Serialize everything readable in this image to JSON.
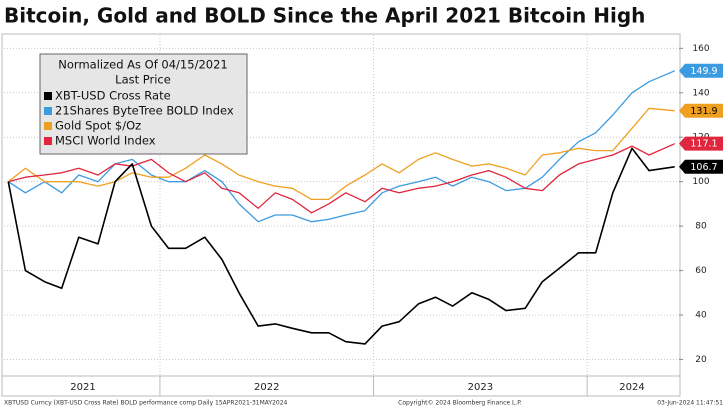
{
  "chart_data": {
    "type": "line",
    "title": "Bitcoin, Gold and BOLD Since the April 2021 Bitcoin High",
    "legend_title": "Normalized As Of 04/15/2021",
    "legend_subtitle": "Last Price",
    "x": [
      2021.29,
      2021.37,
      2021.46,
      2021.54,
      2021.62,
      2021.71,
      2021.79,
      2021.87,
      2021.96,
      2022.04,
      2022.12,
      2022.21,
      2022.29,
      2022.37,
      2022.46,
      2022.54,
      2022.62,
      2022.71,
      2022.79,
      2022.87,
      2022.96,
      2023.04,
      2023.12,
      2023.21,
      2023.29,
      2023.37,
      2023.46,
      2023.54,
      2023.62,
      2023.71,
      2023.79,
      2023.87,
      2023.96,
      2024.04,
      2024.12,
      2024.21,
      2024.29,
      2024.41
    ],
    "series": [
      {
        "name": "XBT-USD Cross Rate",
        "color": "#000000",
        "values": [
          100,
          60,
          55,
          52,
          75,
          72,
          100,
          108,
          80,
          70,
          70,
          75,
          65,
          50,
          35,
          36,
          34,
          32,
          32,
          28,
          27,
          35,
          37,
          45,
          48,
          44,
          50,
          47,
          42,
          43,
          55,
          61,
          68,
          68,
          95,
          115,
          105,
          106.7
        ]
      },
      {
        "name": "21Shares ByteTree BOLD Index",
        "color": "#3b9be0",
        "values": [
          100,
          95,
          100,
          95,
          103,
          100,
          108,
          110,
          103,
          100,
          100,
          105,
          100,
          90,
          82,
          85,
          85,
          82,
          83,
          85,
          87,
          95,
          98,
          100,
          102,
          98,
          102,
          100,
          96,
          97,
          102,
          110,
          118,
          122,
          130,
          140,
          145,
          149.9
        ]
      },
      {
        "name": "Gold Spot $/Oz",
        "color": "#f0a020",
        "values": [
          100,
          106,
          100,
          100,
          100,
          98,
          100,
          104,
          102,
          102,
          106,
          112,
          108,
          103,
          100,
          98,
          97,
          92,
          92,
          98,
          103,
          108,
          104,
          110,
          113,
          110,
          107,
          108,
          106,
          103,
          112,
          113,
          115,
          114,
          114,
          124,
          133,
          131.9
        ]
      },
      {
        "name": "MSCI World Index",
        "color": "#e0263c",
        "values": [
          100,
          102,
          103,
          104,
          106,
          103,
          108,
          107,
          110,
          104,
          100,
          104,
          97,
          95,
          88,
          95,
          92,
          86,
          90,
          95,
          91,
          97,
          95,
          97,
          98,
          100,
          103,
          105,
          102,
          97,
          96,
          103,
          108,
          110,
          112,
          116,
          112,
          117.1
        ]
      }
    ],
    "xlim": [
      2021.27,
      2024.43
    ],
    "xticks": [
      {
        "value": 2021.64,
        "label": "2021"
      },
      {
        "value": 2022.5,
        "label": "2022"
      },
      {
        "value": 2023.5,
        "label": "2023"
      },
      {
        "value": 2024.21,
        "label": "2024"
      }
    ],
    "year_boundaries": [
      2022,
      2023,
      2024
    ],
    "ylim": [
      13,
      166
    ],
    "yticks": [
      20,
      40,
      60,
      80,
      100,
      120,
      140,
      160
    ],
    "grid": true,
    "footer_left": "XBTUSD Curncy (XBT-USD Cross Rate) BOLD performance comp  Daily 15APR2021-31MAY2024",
    "footer_center": "Copyright© 2024 Bloomberg Finance L.P.",
    "footer_right": "03-Jun-2024 11:47:51"
  }
}
